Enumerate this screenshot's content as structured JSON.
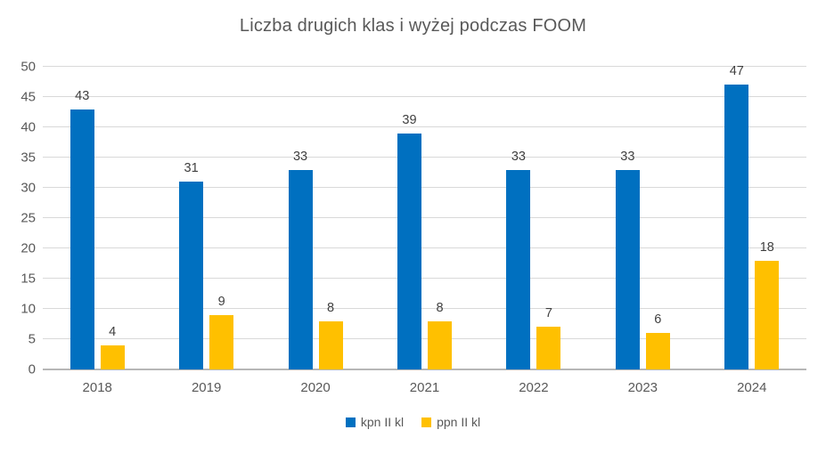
{
  "chart_data": {
    "type": "bar",
    "title": "Liczba drugich klas i wyżej podczas FOOM",
    "categories": [
      "2018",
      "2019",
      "2020",
      "2021",
      "2022",
      "2023",
      "2024"
    ],
    "series": [
      {
        "name": "kpn II kl",
        "color": "#0070C0",
        "values": [
          43,
          31,
          33,
          39,
          33,
          33,
          47
        ]
      },
      {
        "name": "ppn II kl",
        "color": "#FFC000",
        "values": [
          4,
          9,
          8,
          8,
          7,
          6,
          18
        ]
      }
    ],
    "xlabel": "",
    "ylabel": "",
    "ylim": [
      0,
      50
    ],
    "ytick_step": 5,
    "grid": "horizontal",
    "legend_position": "bottom",
    "data_labels": true
  },
  "colors": {
    "gridline": "#d9d9d9",
    "axis_line": "#b7b7b7",
    "title_text": "#595959",
    "tick_text": "#595959",
    "value_label_text": "#404040",
    "background": "#ffffff"
  }
}
